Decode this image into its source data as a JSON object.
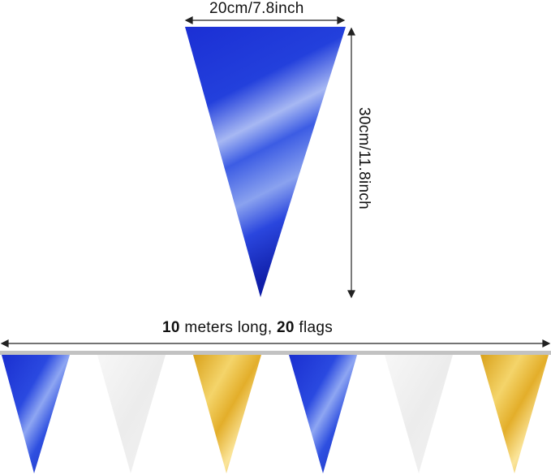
{
  "dimensions": {
    "width_label": "20cm/7.8inch",
    "height_label": "30cm/11.8inch"
  },
  "banner": {
    "length_number": "10",
    "length_text": " meters long, ",
    "flag_count": "20",
    "flag_text": " flags"
  },
  "colors": {
    "blue": "#1f34c8",
    "white": "#f1f1f1",
    "gold": "#e8b52a",
    "cord": "#bdbdbd",
    "arrow": "#222222"
  },
  "flags": [
    {
      "color": "blue"
    },
    {
      "color": "white"
    },
    {
      "color": "gold"
    },
    {
      "color": "blue"
    },
    {
      "color": "white"
    },
    {
      "color": "gold"
    }
  ]
}
